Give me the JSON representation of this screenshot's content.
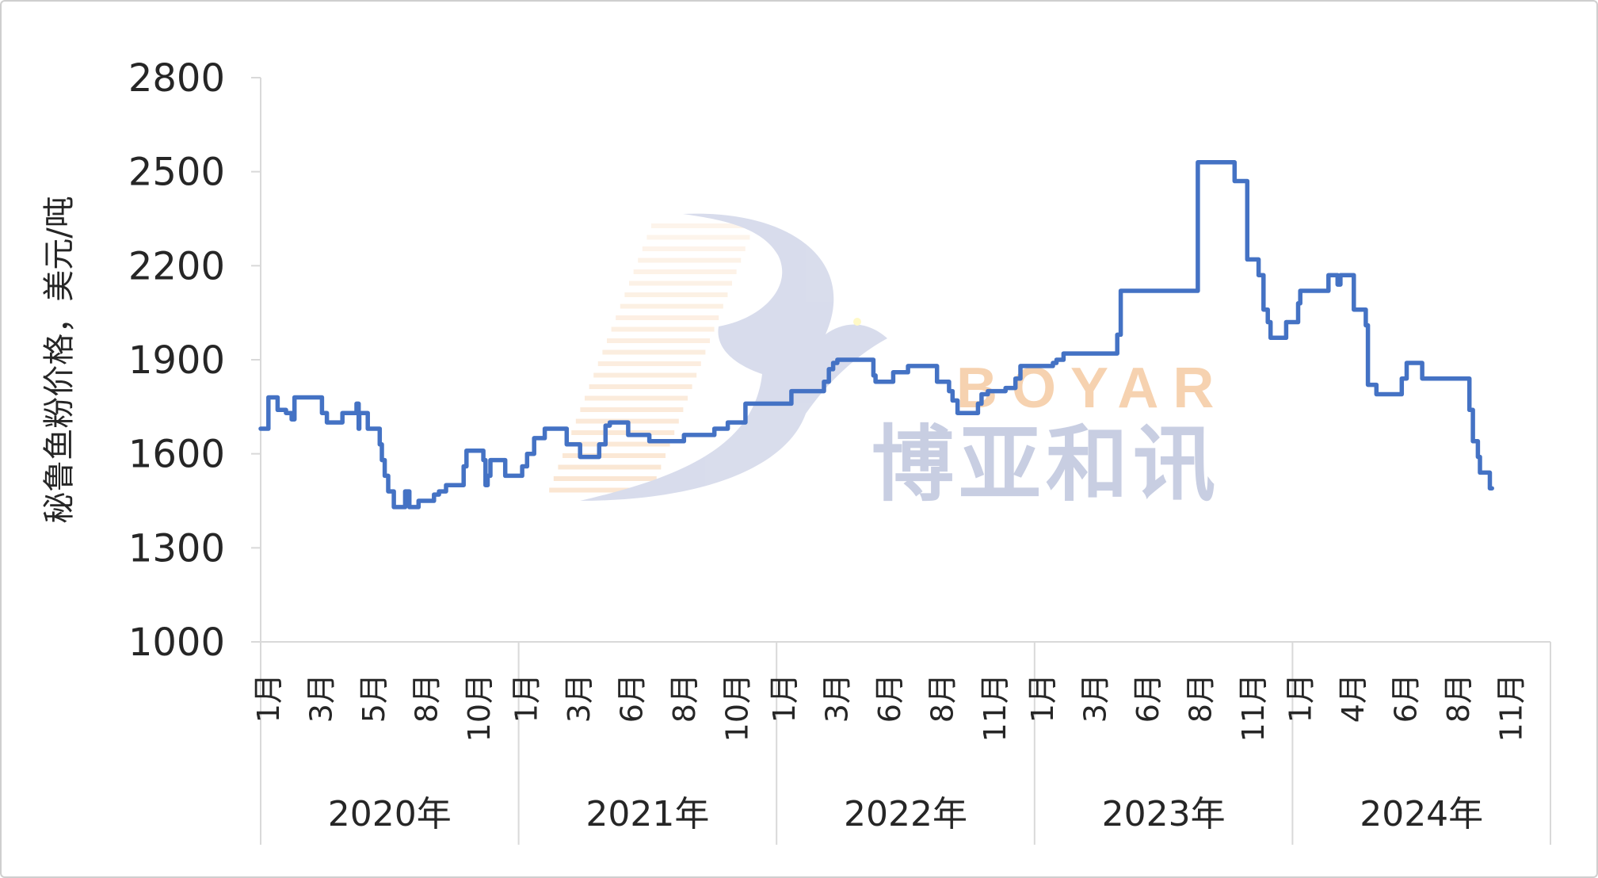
{
  "chart_data": {
    "type": "line",
    "title": "",
    "xlabel": "",
    "ylabel": "秘鲁鱼粉价格，美元/吨",
    "ylim": [
      1000,
      2800
    ],
    "yticks": [
      "1000",
      "1300",
      "1600",
      "1900",
      "2200",
      "2500",
      "2800"
    ],
    "grid": false,
    "legend": "none",
    "line_color": "#4472C4",
    "step": true,
    "x_groups": [
      {
        "year": "2020年",
        "months": [
          "1月",
          "3月",
          "5月",
          "8月",
          "10月"
        ]
      },
      {
        "year": "2021年",
        "months": [
          "1月",
          "3月",
          "6月",
          "8月",
          "10月"
        ]
      },
      {
        "year": "2022年",
        "months": [
          "1月",
          "3月",
          "6月",
          "8月",
          "11月"
        ]
      },
      {
        "year": "2023年",
        "months": [
          "1月",
          "3月",
          "6月",
          "8月",
          "11月"
        ]
      },
      {
        "year": "2024年",
        "months": [
          "1月",
          "4月",
          "6月",
          "8月",
          "11月"
        ]
      }
    ],
    "series": [
      {
        "points": [
          [
            "2020-01-01",
            1680
          ],
          [
            "2020-01-12",
            1780
          ],
          [
            "2020-01-25",
            1740
          ],
          [
            "2020-02-06",
            1730
          ],
          [
            "2020-02-14",
            1710
          ],
          [
            "2020-02-18",
            1780
          ],
          [
            "2020-03-28",
            1730
          ],
          [
            "2020-04-04",
            1700
          ],
          [
            "2020-04-26",
            1730
          ],
          [
            "2020-05-16",
            1760
          ],
          [
            "2020-05-19",
            1680
          ],
          [
            "2020-05-20",
            1730
          ],
          [
            "2020-06-01",
            1680
          ],
          [
            "2020-06-18",
            1630
          ],
          [
            "2020-06-21",
            1580
          ],
          [
            "2020-06-25",
            1530
          ],
          [
            "2020-06-30",
            1480
          ],
          [
            "2020-07-08",
            1430
          ],
          [
            "2020-07-24",
            1480
          ],
          [
            "2020-07-30",
            1430
          ],
          [
            "2020-08-12",
            1450
          ],
          [
            "2020-09-03",
            1470
          ],
          [
            "2020-09-10",
            1480
          ],
          [
            "2020-09-20",
            1500
          ],
          [
            "2020-10-15",
            1560
          ],
          [
            "2020-10-19",
            1610
          ],
          [
            "2020-11-12",
            1580
          ],
          [
            "2020-11-15",
            1500
          ],
          [
            "2020-11-18",
            1530
          ],
          [
            "2020-11-22",
            1580
          ],
          [
            "2020-12-13",
            1530
          ],
          [
            "2021-01-06",
            1560
          ],
          [
            "2021-01-13",
            1600
          ],
          [
            "2021-01-23",
            1650
          ],
          [
            "2021-02-07",
            1680
          ],
          [
            "2021-03-10",
            1630
          ],
          [
            "2021-03-29",
            1590
          ],
          [
            "2021-04-25",
            1630
          ],
          [
            "2021-05-04",
            1690
          ],
          [
            "2021-05-10",
            1700
          ],
          [
            "2021-06-05",
            1660
          ],
          [
            "2021-07-05",
            1640
          ],
          [
            "2021-08-23",
            1660
          ],
          [
            "2021-10-05",
            1680
          ],
          [
            "2021-10-24",
            1700
          ],
          [
            "2021-11-18",
            1760
          ],
          [
            "2022-01-22",
            1800
          ],
          [
            "2022-03-09",
            1830
          ],
          [
            "2022-03-16",
            1870
          ],
          [
            "2022-03-22",
            1890
          ],
          [
            "2022-03-28",
            1900
          ],
          [
            "2022-05-18",
            1850
          ],
          [
            "2022-05-21",
            1830
          ],
          [
            "2022-06-15",
            1860
          ],
          [
            "2022-07-06",
            1880
          ],
          [
            "2022-08-16",
            1830
          ],
          [
            "2022-09-02",
            1800
          ],
          [
            "2022-09-07",
            1770
          ],
          [
            "2022-09-14",
            1730
          ],
          [
            "2022-10-13",
            1760
          ],
          [
            "2022-10-18",
            1790
          ],
          [
            "2022-10-27",
            1800
          ],
          [
            "2022-11-21",
            1810
          ],
          [
            "2022-12-05",
            1840
          ],
          [
            "2022-12-12",
            1880
          ],
          [
            "2023-01-27",
            1890
          ],
          [
            "2023-02-01",
            1900
          ],
          [
            "2023-02-11",
            1920
          ],
          [
            "2023-04-28",
            1980
          ],
          [
            "2023-05-03",
            2120
          ],
          [
            "2023-08-20",
            2530
          ],
          [
            "2023-10-11",
            2470
          ],
          [
            "2023-10-29",
            2220
          ],
          [
            "2023-11-14",
            2170
          ],
          [
            "2023-11-21",
            2060
          ],
          [
            "2023-11-27",
            2020
          ],
          [
            "2023-12-01",
            1970
          ],
          [
            "2023-12-23",
            2020
          ],
          [
            "2024-01-09",
            2080
          ],
          [
            "2024-01-12",
            2120
          ],
          [
            "2024-02-21",
            2170
          ],
          [
            "2024-03-05",
            2140
          ],
          [
            "2024-03-09",
            2170
          ],
          [
            "2024-03-28",
            2060
          ],
          [
            "2024-04-14",
            2010
          ],
          [
            "2024-04-17",
            1820
          ],
          [
            "2024-04-29",
            1790
          ],
          [
            "2024-06-04",
            1840
          ],
          [
            "2024-06-11",
            1890
          ],
          [
            "2024-07-03",
            1840
          ],
          [
            "2024-09-08",
            1740
          ],
          [
            "2024-09-13",
            1640
          ],
          [
            "2024-09-20",
            1590
          ],
          [
            "2024-09-23",
            1540
          ],
          [
            "2024-10-07",
            1490
          ],
          [
            "2024-10-10",
            1490
          ]
        ]
      }
    ]
  },
  "watermark": {
    "latin": "BOYAR",
    "chinese": "博亚和讯"
  }
}
